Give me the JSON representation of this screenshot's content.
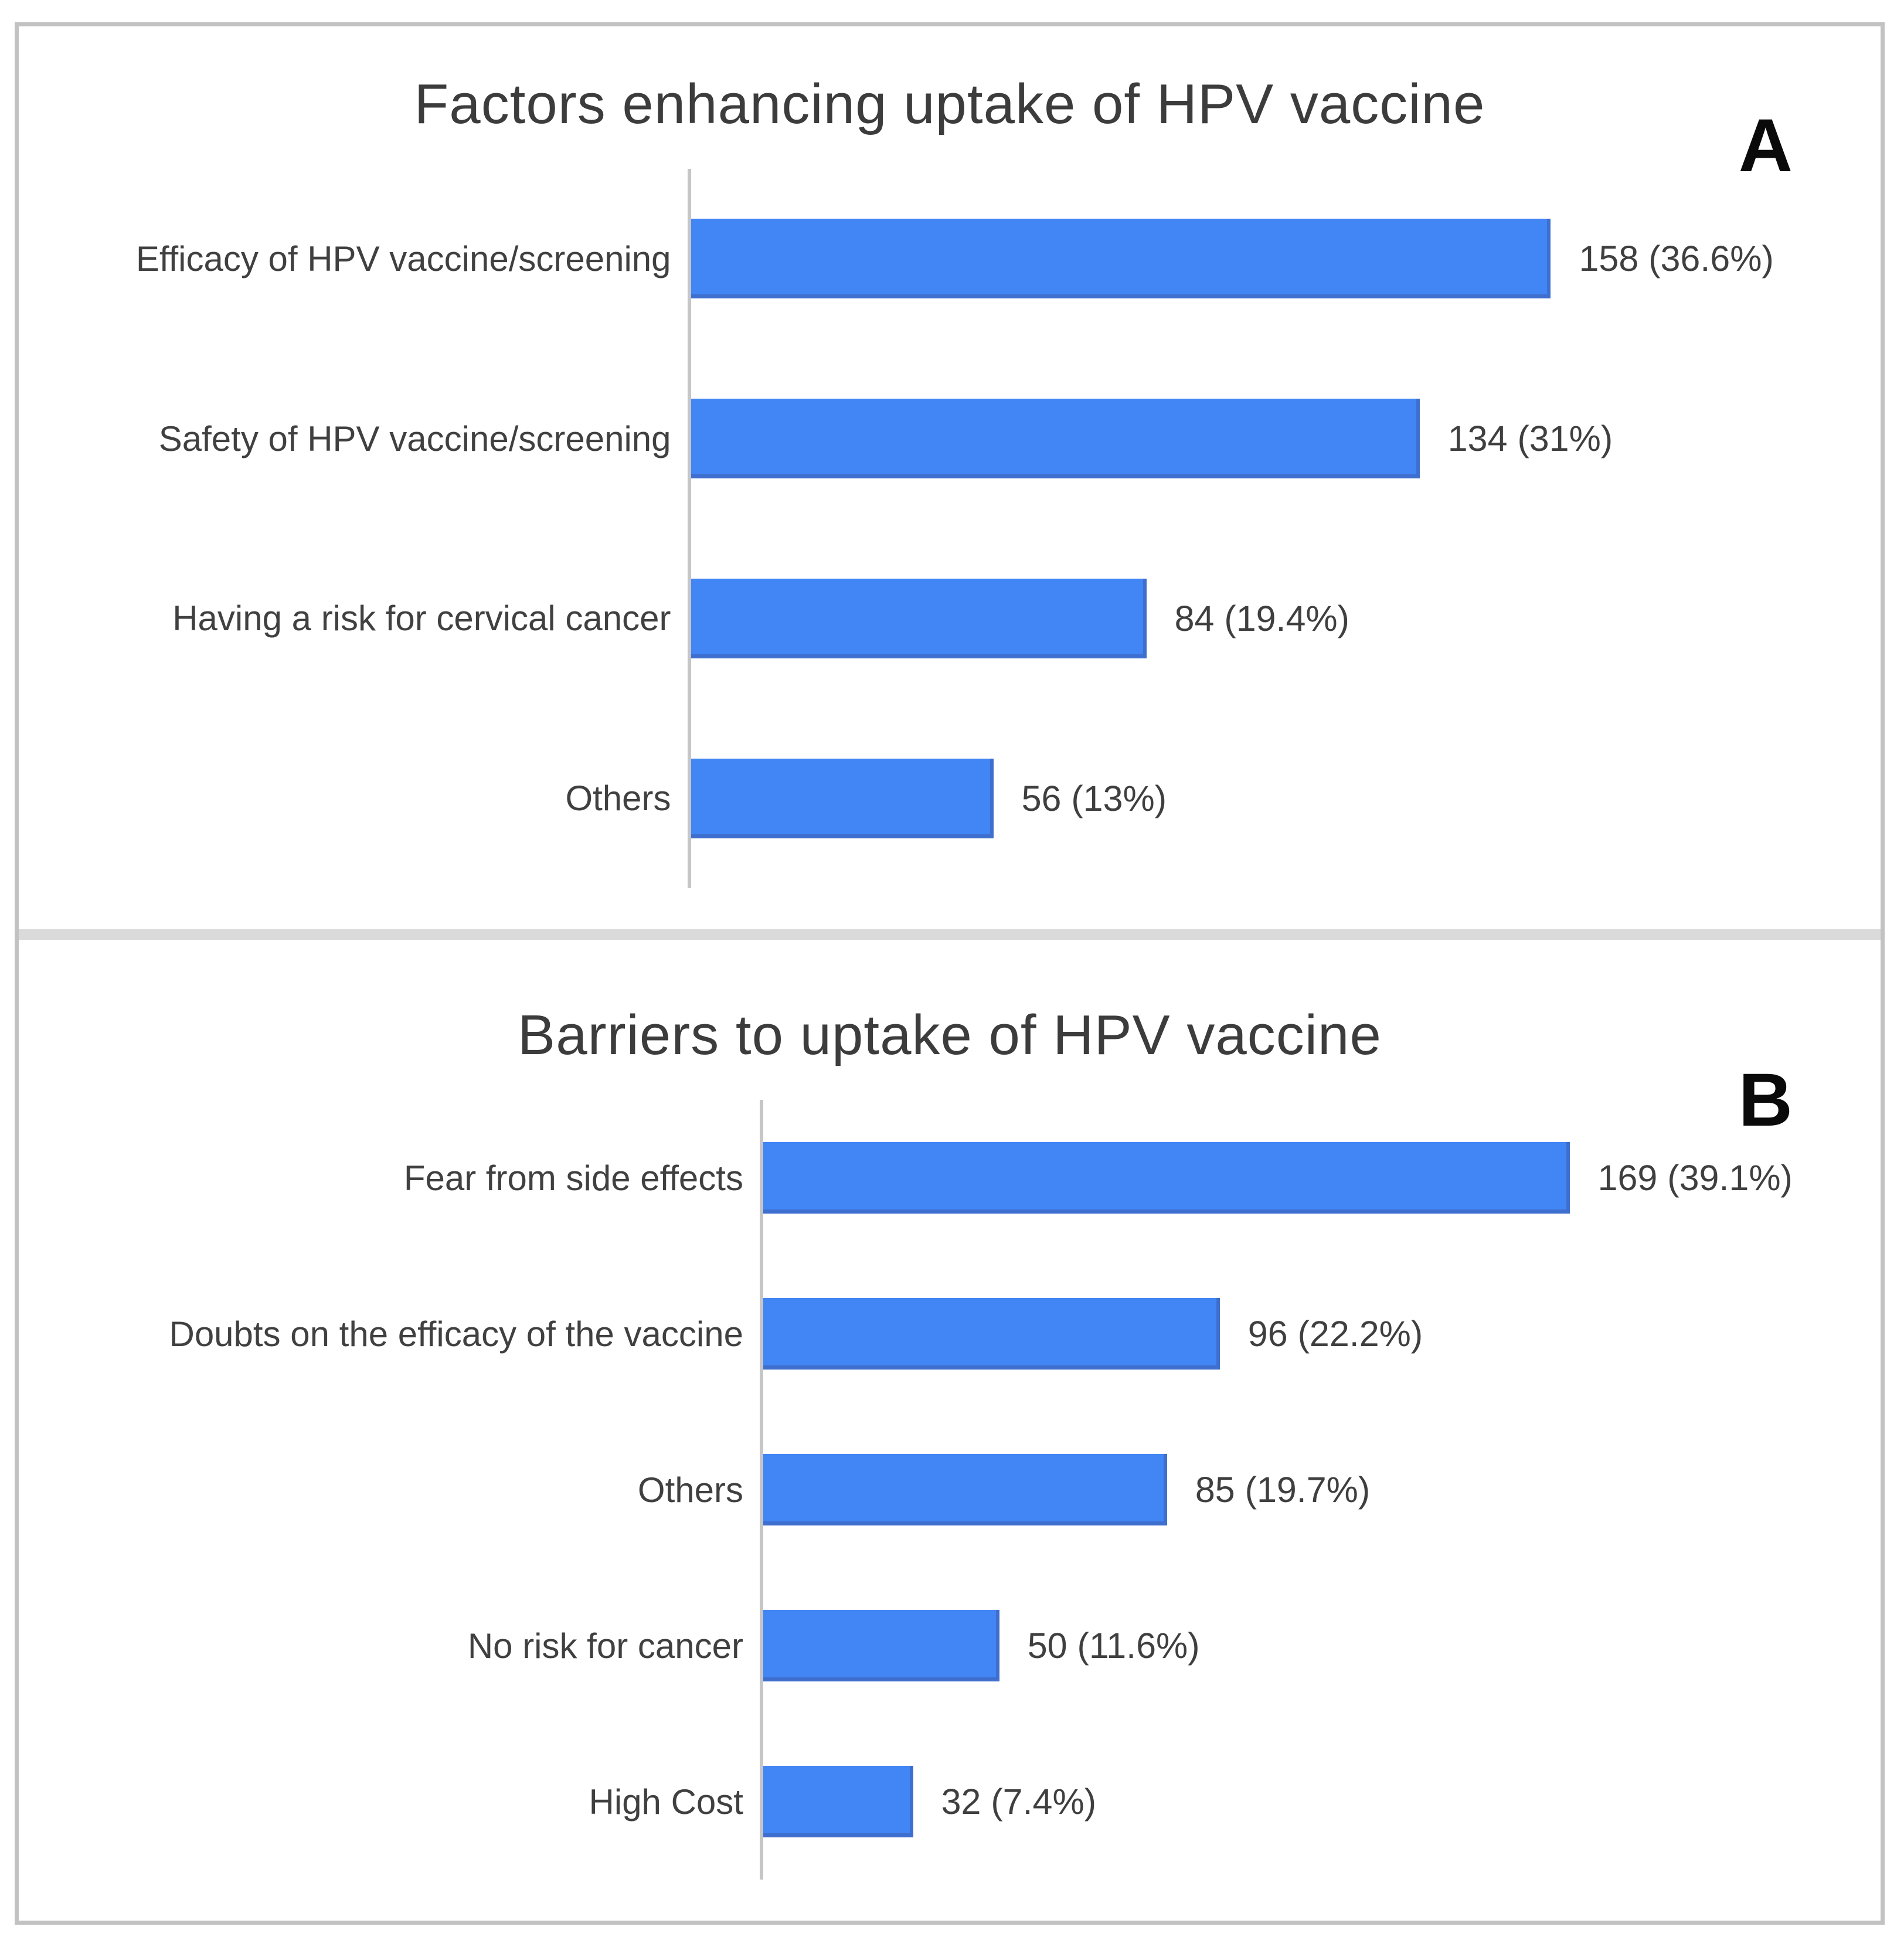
{
  "colors": {
    "bar_fill": "#4285F4",
    "bar_edge": "#3E6FCE",
    "axis_line": "#C6C6C6",
    "title_text": "#3C3C3C",
    "panel_border": "#C2C2C2"
  },
  "chart_data": [
    {
      "type": "bar",
      "orientation": "horizontal",
      "title": "Factors enhancing uptake of HPV vaccine",
      "panel_label": "A",
      "categories": [
        "Efficacy of HPV vaccine/screening",
        "Safety of HPV vaccine/screening",
        "Having a risk for cervical cancer",
        "Others"
      ],
      "values": [
        158,
        134,
        84,
        56
      ],
      "percentages": [
        36.6,
        31,
        19.4,
        13
      ],
      "labels": [
        "158 (36.6%)",
        "134 (31%)",
        "84 (19.4%)",
        "56 (13%)"
      ],
      "xlabel": "",
      "ylabel": "",
      "grid": false,
      "legend": "none"
    },
    {
      "type": "bar",
      "orientation": "horizontal",
      "title": "Barriers to uptake of HPV vaccine",
      "panel_label": "B",
      "categories": [
        "Fear from side effects",
        "Doubts on the efficacy of the vaccine",
        "Others",
        "No risk for cancer",
        "High Cost"
      ],
      "values": [
        169,
        96,
        85,
        50,
        32
      ],
      "percentages": [
        39.1,
        22.2,
        19.7,
        11.6,
        7.4
      ],
      "labels": [
        "169 (39.1%)",
        "96 (22.2%)",
        "85 (19.7%)",
        "50 (11.6%)",
        "32 (7.4%)"
      ],
      "xlabel": "",
      "ylabel": "",
      "grid": false,
      "legend": "none"
    }
  ]
}
